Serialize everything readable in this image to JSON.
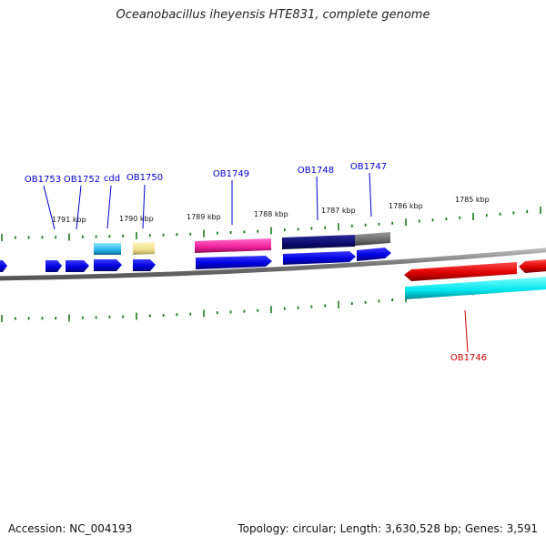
{
  "title": "Oceanobacillus iheyensis HTE831, complete genome",
  "footer": {
    "accession": "Accession: NC_004193",
    "summary": "Topology: circular; Length: 3,630,528 bp; Genes: 3,591"
  },
  "colors": {
    "blue_label": "#0000cc",
    "red_label": "#cc0000",
    "tick": "#1a7a1a",
    "backbone": "#888888"
  },
  "kbp_labels": [
    "1791 kbp",
    "1790 kbp",
    "1789 kbp",
    "1788 kbp",
    "1787 kbp",
    "1786 kbp",
    "1785 kbp"
  ],
  "gene_labels": [
    {
      "text": "OB1753",
      "color": "blue"
    },
    {
      "text": "OB1752",
      "color": "blue"
    },
    {
      "text": "cdd",
      "color": "blue"
    },
    {
      "text": "OB1750",
      "color": "blue"
    },
    {
      "text": "OB1749",
      "color": "blue"
    },
    {
      "text": "OB1748",
      "color": "blue"
    },
    {
      "text": "OB1747",
      "color": "blue"
    },
    {
      "text": "OB1746",
      "color": "red"
    }
  ]
}
